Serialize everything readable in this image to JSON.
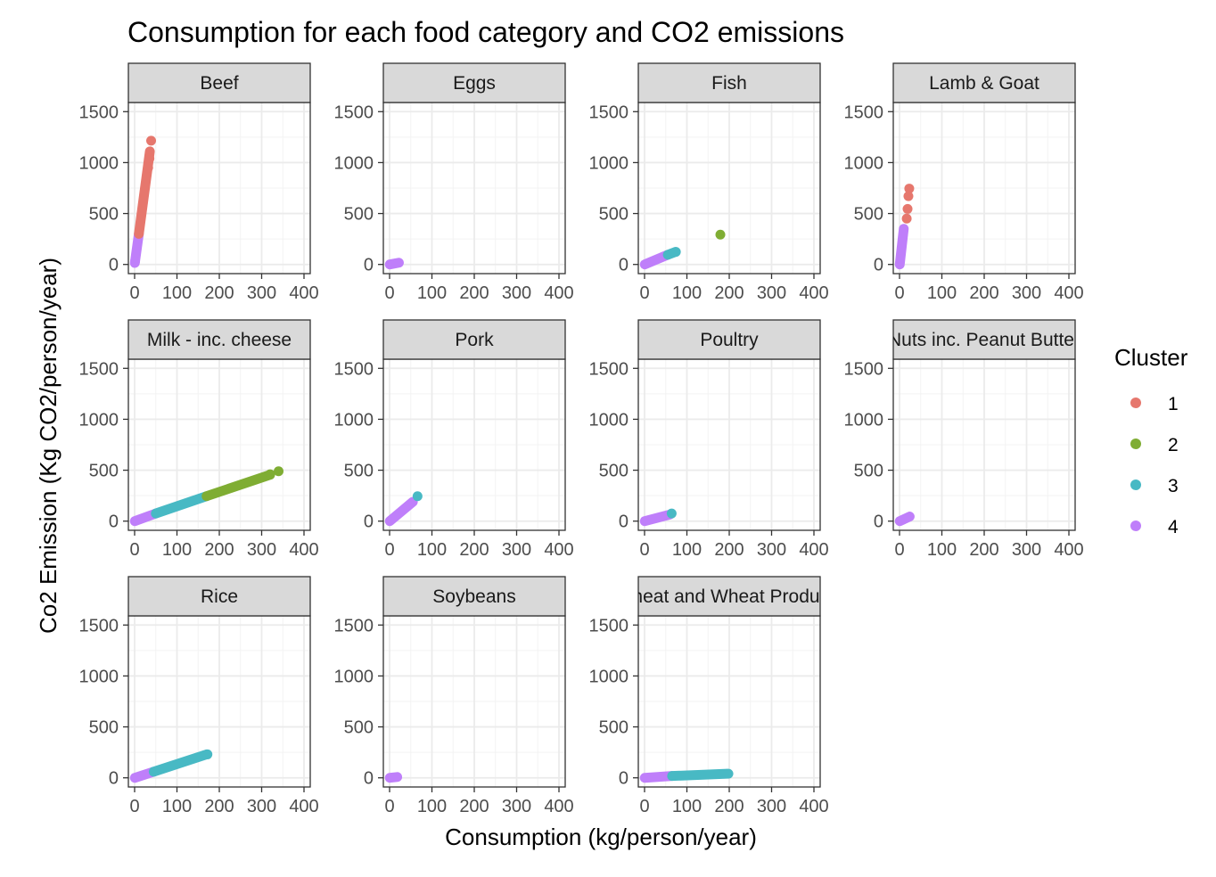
{
  "chart_data": {
    "type": "scatter",
    "title": "Consumption for each food category and CO2 emissions",
    "xlabel": "Consumption (kg/person/year)",
    "ylabel": "Co2 Emission (Kg CO2/person/year)",
    "xlim": [
      0,
      400
    ],
    "ylim": [
      0,
      1500
    ],
    "x_ticks": [
      "0",
      "100",
      "200",
      "300",
      "400"
    ],
    "y_ticks": [
      "0",
      "500",
      "1000",
      "1500"
    ],
    "grid": true,
    "legend": {
      "title": "Cluster",
      "position": "right",
      "entries": [
        {
          "label": "1",
          "color": "#E6776D"
        },
        {
          "label": "2",
          "color": "#7FAD33"
        },
        {
          "label": "3",
          "color": "#48B9C4"
        },
        {
          "label": "4",
          "color": "#BF7FFA"
        }
      ]
    },
    "panels": [
      {
        "name": "Beef",
        "label": "Beef",
        "segments": [
          {
            "cluster": 4,
            "x0": 0.5,
            "y0": 15,
            "x1": 10,
            "y1": 300
          },
          {
            "cluster": 1,
            "x0": 10,
            "y0": 300,
            "x1": 36,
            "y1": 1110
          }
        ],
        "points": [
          {
            "cluster": 1,
            "x": 39,
            "y": 1215
          },
          {
            "cluster": 1,
            "x": 35,
            "y": 1040
          },
          {
            "cluster": 1,
            "x": 32,
            "y": 950
          },
          {
            "cluster": 4,
            "x": 1,
            "y": 30
          }
        ]
      },
      {
        "name": "Eggs",
        "label": "Eggs",
        "segments": [
          {
            "cluster": 4,
            "x0": 0.5,
            "y0": 0,
            "x1": 22,
            "y1": 17
          }
        ],
        "points": []
      },
      {
        "name": "Fish",
        "label": "Fish",
        "segments": [
          {
            "cluster": 4,
            "x0": 0.5,
            "y0": 0,
            "x1": 55,
            "y1": 95
          },
          {
            "cluster": 3,
            "x0": 55,
            "y0": 95,
            "x1": 73,
            "y1": 123
          }
        ],
        "points": [
          {
            "cluster": 3,
            "x": 74,
            "y": 123
          },
          {
            "cluster": 2,
            "x": 179,
            "y": 293
          }
        ]
      },
      {
        "name": "Lamb & Goat",
        "label": "Lamb & Goat",
        "segments": [
          {
            "cluster": 4,
            "x0": 0.5,
            "y0": 0,
            "x1": 10,
            "y1": 350
          }
        ],
        "points": [
          {
            "cluster": 1,
            "x": 17,
            "y": 450
          },
          {
            "cluster": 1,
            "x": 19,
            "y": 545
          },
          {
            "cluster": 1,
            "x": 21,
            "y": 670
          },
          {
            "cluster": 1,
            "x": 23,
            "y": 745
          }
        ]
      },
      {
        "name": "Milk - inc. cheese",
        "label": "Milk - inc. cheese",
        "segments": [
          {
            "cluster": 4,
            "x0": 0.5,
            "y0": 0,
            "x1": 50,
            "y1": 75
          },
          {
            "cluster": 3,
            "x0": 50,
            "y0": 75,
            "x1": 170,
            "y1": 245
          },
          {
            "cluster": 2,
            "x0": 170,
            "y0": 245,
            "x1": 320,
            "y1": 455
          }
        ],
        "points": [
          {
            "cluster": 2,
            "x": 340,
            "y": 490
          },
          {
            "cluster": 2,
            "x": 320,
            "y": 460
          }
        ]
      },
      {
        "name": "Pork",
        "label": "Pork",
        "segments": [
          {
            "cluster": 4,
            "x0": 0.5,
            "y0": 0,
            "x1": 55,
            "y1": 190
          }
        ],
        "points": [
          {
            "cluster": 3,
            "x": 66,
            "y": 245
          }
        ]
      },
      {
        "name": "Poultry",
        "label": "Poultry",
        "segments": [
          {
            "cluster": 4,
            "x0": 0.5,
            "y0": 0,
            "x1": 60,
            "y1": 65
          }
        ],
        "points": [
          {
            "cluster": 3,
            "x": 64,
            "y": 75
          }
        ]
      },
      {
        "name": "Nuts inc. Peanut Butter",
        "label": "Nuts inc. Peanut Butter",
        "segments": [
          {
            "cluster": 4,
            "x0": 0.5,
            "y0": 0,
            "x1": 24,
            "y1": 45
          }
        ],
        "points": []
      },
      {
        "name": "Rice",
        "label": "Rice",
        "segments": [
          {
            "cluster": 4,
            "x0": 0.5,
            "y0": 0,
            "x1": 45,
            "y1": 60
          },
          {
            "cluster": 3,
            "x0": 45,
            "y0": 60,
            "x1": 170,
            "y1": 230
          }
        ],
        "points": [
          {
            "cluster": 3,
            "x": 172,
            "y": 230
          }
        ]
      },
      {
        "name": "Soybeans",
        "label": "Soybeans",
        "segments": [
          {
            "cluster": 4,
            "x0": 0.5,
            "y0": 0,
            "x1": 18,
            "y1": 8
          }
        ],
        "points": []
      },
      {
        "name": "Wheat and Wheat Products",
        "label": "Wheat and Wheat Products",
        "segments": [
          {
            "cluster": 4,
            "x0": 0.5,
            "y0": 0,
            "x1": 65,
            "y1": 18
          },
          {
            "cluster": 3,
            "x0": 65,
            "y0": 18,
            "x1": 195,
            "y1": 40
          }
        ],
        "points": [
          {
            "cluster": 3,
            "x": 198,
            "y": 40
          }
        ]
      }
    ]
  }
}
